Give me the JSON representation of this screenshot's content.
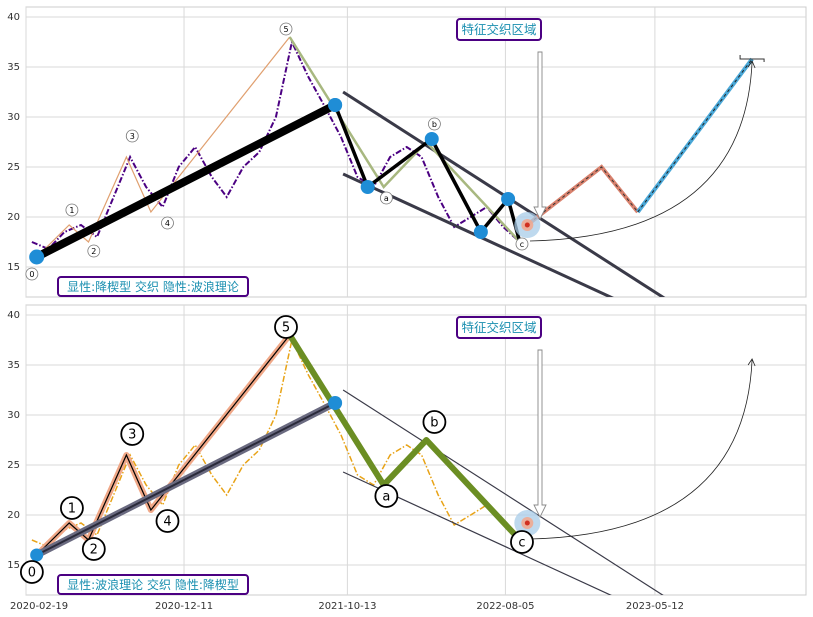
{
  "chart_data": [
    {
      "type": "line",
      "xlim": [
        "2020-02-19",
        "2024-02-19"
      ],
      "ylim": [
        12,
        41
      ],
      "y_ticks": [
        15,
        20,
        25,
        30,
        35,
        40
      ],
      "grid": true,
      "annotation_box": "特征交织区域",
      "caption": "显性:降楔型 交织 隐性:波浪理论",
      "price_style": "dark-purple dash-dot",
      "series": [
        {
          "name": "price",
          "x": [
            "2020-03-01",
            "2020-04-01",
            "2020-05-01",
            "2020-06-01",
            "2020-07-01",
            "2020-08-01",
            "2020-09-01",
            "2020-10-01",
            "2020-11-01",
            "2020-12-01",
            "2021-01-01",
            "2021-02-01",
            "2021-03-01",
            "2021-04-01",
            "2021-05-01",
            "2021-06-01",
            "2021-07-01",
            "2021-08-01",
            "2021-09-01",
            "2021-10-01",
            "2021-11-01",
            "2021-12-01",
            "2022-01-01",
            "2022-02-01",
            "2022-03-01",
            "2022-04-01",
            "2022-05-01",
            "2022-06-01",
            "2022-07-01",
            "2022-08-01",
            "2022-09-01"
          ],
          "y": [
            17.5,
            16.8,
            18.5,
            19.2,
            18.0,
            22.0,
            26.0,
            23.0,
            21.0,
            25.0,
            27.0,
            24.0,
            22.0,
            25.0,
            26.5,
            30.0,
            37.5,
            34.0,
            31.0,
            28.0,
            24.0,
            23.0,
            26.0,
            27.0,
            26.0,
            22.0,
            19.0,
            20.0,
            21.0,
            19.0,
            17.5
          ]
        },
        {
          "name": "wave_1_5",
          "x": [
            "2020-03-10",
            "2020-05-10",
            "2020-06-15",
            "2020-08-25",
            "2020-10-10",
            "2021-06-27"
          ],
          "y": [
            16.0,
            19.2,
            17.5,
            26.0,
            20.5,
            38.0
          ]
        },
        {
          "name": "wave_abc",
          "x": [
            "2021-06-27",
            "2021-12-20",
            "2022-03-10",
            "2022-09-10"
          ],
          "y": [
            38.0,
            23.0,
            27.5,
            17.0
          ]
        },
        {
          "name": "trend_thick",
          "x": [
            "2020-03-10",
            "2021-09-20"
          ],
          "y": [
            16.0,
            31.2
          ]
        },
        {
          "name": "zigzag",
          "x": [
            "2021-09-20",
            "2021-11-20",
            "2022-03-20",
            "2022-06-20",
            "2022-08-10",
            "2022-09-01"
          ],
          "y": [
            31.2,
            23.0,
            27.8,
            18.5,
            21.8,
            17.5
          ]
        },
        {
          "name": "wedge_upper",
          "x": [
            "2021-10-05",
            "2023-06-10"
          ],
          "y": [
            32.5,
            11.5
          ]
        },
        {
          "name": "wedge_lower",
          "x": [
            "2021-10-05",
            "2023-03-10"
          ],
          "y": [
            24.3,
            11.5
          ]
        },
        {
          "name": "proj_red",
          "x": [
            "2022-09-10",
            "2023-02-01",
            "2023-04-10"
          ],
          "y": [
            19.0,
            25.0,
            20.5
          ]
        },
        {
          "name": "proj_blue",
          "x": [
            "2023-04-10",
            "2023-11-10"
          ],
          "y": [
            20.5,
            35.8
          ]
        }
      ],
      "wave_labels": [
        {
          "label": "0",
          "x": "2020-03-01",
          "y": 14.3
        },
        {
          "label": "1",
          "x": "2020-05-15",
          "y": 20.7
        },
        {
          "label": "2",
          "x": "2020-06-25",
          "y": 16.6
        },
        {
          "label": "3",
          "x": "2020-09-05",
          "y": 28.1
        },
        {
          "label": "4",
          "x": "2020-11-10",
          "y": 19.4
        },
        {
          "label": "5",
          "x": "2021-06-20",
          "y": 38.8
        },
        {
          "label": "a",
          "x": "2021-12-25",
          "y": 21.9
        },
        {
          "label": "b",
          "x": "2022-03-25",
          "y": 29.3
        },
        {
          "label": "c",
          "x": "2022-09-05",
          "y": 17.3
        }
      ]
    },
    {
      "type": "line",
      "xlim": [
        "2020-02-19",
        "2024-02-19"
      ],
      "ylim": [
        12,
        41
      ],
      "y_ticks": [
        15,
        20,
        25,
        30,
        35,
        40
      ],
      "x_ticks": [
        "2020-02-19",
        "2020-12-11",
        "2021-10-13",
        "2022-08-05",
        "2023-05-12"
      ],
      "grid": true,
      "annotation_box": "特征交织区域",
      "caption": "显性:波浪理论 交织 隐性:降楔型",
      "price_style": "orange dash-dot",
      "series": [
        {
          "name": "price",
          "x": [
            "2020-03-01",
            "2020-04-01",
            "2020-05-01",
            "2020-06-01",
            "2020-07-01",
            "2020-08-01",
            "2020-09-01",
            "2020-10-01",
            "2020-11-01",
            "2020-12-01",
            "2021-01-01",
            "2021-02-01",
            "2021-03-01",
            "2021-04-01",
            "2021-05-01",
            "2021-06-01",
            "2021-07-01",
            "2021-08-01",
            "2021-09-01",
            "2021-10-01",
            "2021-11-01",
            "2021-12-01",
            "2022-01-01",
            "2022-02-01",
            "2022-03-01",
            "2022-04-01",
            "2022-05-01",
            "2022-06-01",
            "2022-07-01",
            "2022-08-01",
            "2022-09-01"
          ],
          "y": [
            17.5,
            16.8,
            18.5,
            19.2,
            18.0,
            22.0,
            26.0,
            23.0,
            21.0,
            25.0,
            27.0,
            24.0,
            22.0,
            25.0,
            26.5,
            30.0,
            37.5,
            34.0,
            31.0,
            28.0,
            24.0,
            23.0,
            26.0,
            27.0,
            26.0,
            22.0,
            19.0,
            20.0,
            21.0,
            19.0,
            17.5
          ]
        },
        {
          "name": "wave_1_5",
          "x": [
            "2020-03-10",
            "2020-05-10",
            "2020-06-15",
            "2020-08-25",
            "2020-10-10",
            "2021-06-27"
          ],
          "y": [
            16.0,
            19.2,
            17.5,
            26.0,
            20.5,
            38.0
          ]
        },
        {
          "name": "wave_abc",
          "x": [
            "2021-06-27",
            "2021-12-20",
            "2022-03-10",
            "2022-09-10"
          ],
          "y": [
            38.0,
            23.0,
            27.5,
            17.0
          ]
        },
        {
          "name": "trend_thick",
          "x": [
            "2020-03-10",
            "2021-09-20"
          ],
          "y": [
            16.0,
            31.2
          ]
        },
        {
          "name": "wedge_upper",
          "x": [
            "2021-10-05",
            "2023-06-10"
          ],
          "y": [
            32.5,
            11.5
          ]
        },
        {
          "name": "wedge_lower",
          "x": [
            "2021-10-05",
            "2023-03-10"
          ],
          "y": [
            24.3,
            11.5
          ]
        }
      ],
      "wave_labels": [
        {
          "label": "0",
          "x": "2020-03-01",
          "y": 14.3
        },
        {
          "label": "1",
          "x": "2020-05-15",
          "y": 20.7
        },
        {
          "label": "2",
          "x": "2020-06-25",
          "y": 16.6
        },
        {
          "label": "3",
          "x": "2020-09-05",
          "y": 28.1
        },
        {
          "label": "4",
          "x": "2020-11-10",
          "y": 19.4
        },
        {
          "label": "5",
          "x": "2021-06-20",
          "y": 38.8
        },
        {
          "label": "a",
          "x": "2021-12-25",
          "y": 21.9
        },
        {
          "label": "b",
          "x": "2022-03-25",
          "y": 29.3
        },
        {
          "label": "c",
          "x": "2022-09-05",
          "y": 17.3
        }
      ]
    }
  ],
  "colors": {
    "price_top": "#4b0082",
    "price_bottom": "#e8a317",
    "marker": "#1f8dd6",
    "wedge": "#3a3a48",
    "box_text": "#1a8fb0",
    "box_border": "#4b0082",
    "wave_bottom": "#f0a888",
    "abc_bottom": "#6b8e23",
    "proj_red": "#d9826e",
    "proj_blue": "#4aa8d8",
    "grid": "#d9d9d9"
  }
}
